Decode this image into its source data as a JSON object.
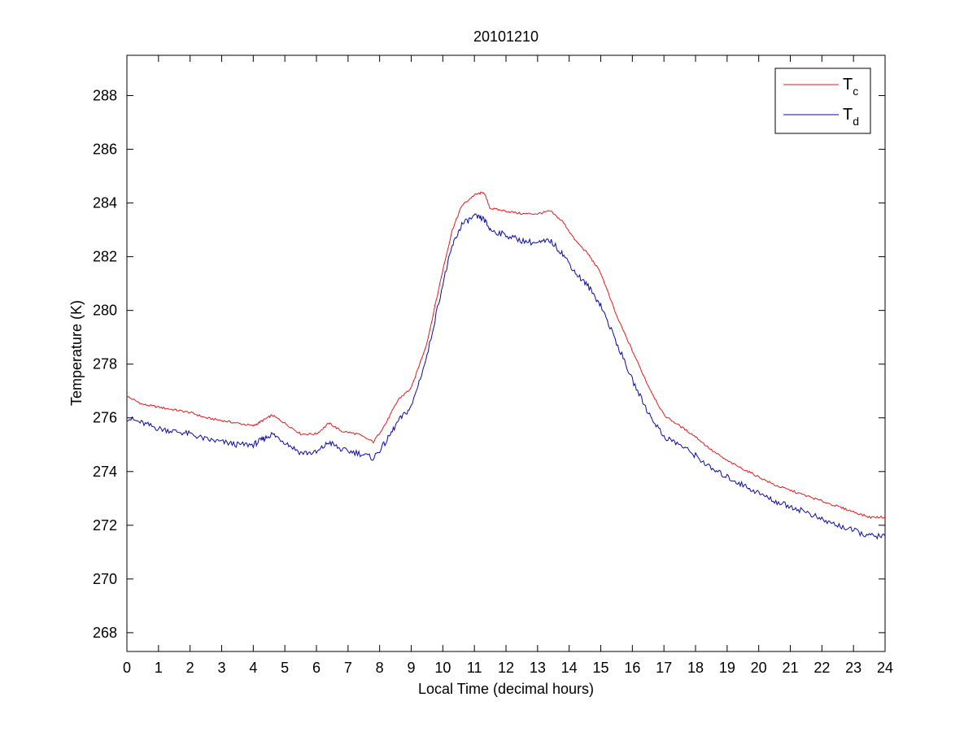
{
  "chart_data": {
    "type": "line",
    "title": "20101210",
    "xlabel": "Local Time (decimal hours)",
    "ylabel": "Temperature (K)",
    "xlim": [
      0,
      24
    ],
    "ylim": [
      267.3,
      289.5
    ],
    "xticks": [
      0,
      1,
      2,
      3,
      4,
      5,
      6,
      7,
      8,
      9,
      10,
      11,
      12,
      13,
      14,
      15,
      16,
      17,
      18,
      19,
      20,
      21,
      22,
      23,
      24
    ],
    "yticks": [
      268,
      270,
      272,
      274,
      276,
      278,
      280,
      282,
      284,
      286,
      288
    ],
    "grid": false,
    "legend_position": "top-right",
    "series": [
      {
        "name": "T",
        "name_subscript": "c",
        "color": "#e31a1c",
        "x": [
          0,
          0.5,
          1,
          1.5,
          2,
          2.5,
          3,
          3.5,
          4,
          4.3,
          4.6,
          5,
          5.5,
          6,
          6.4,
          6.8,
          7.3,
          7.8,
          8.2,
          8.6,
          9,
          9.5,
          10,
          10.3,
          10.6,
          11,
          11.3,
          11.5,
          12,
          12.5,
          13,
          13.4,
          13.8,
          14.2,
          14.6,
          15,
          15.5,
          16,
          16.5,
          17,
          17.5,
          18,
          18.5,
          19,
          19.5,
          20,
          20.5,
          21,
          21.5,
          22,
          22.5,
          23,
          23.5,
          24
        ],
        "values": [
          276.8,
          276.5,
          276.4,
          276.3,
          276.2,
          276.0,
          275.9,
          275.8,
          275.7,
          275.9,
          276.1,
          275.8,
          275.4,
          275.4,
          275.8,
          275.5,
          275.4,
          275.1,
          275.8,
          276.7,
          277.1,
          278.8,
          281.5,
          283.0,
          283.9,
          284.3,
          284.4,
          283.8,
          283.7,
          283.6,
          283.6,
          283.7,
          283.3,
          282.6,
          282.1,
          281.4,
          279.8,
          278.5,
          277.2,
          276.1,
          275.7,
          275.3,
          274.8,
          274.4,
          274.1,
          273.8,
          273.5,
          273.3,
          273.1,
          272.9,
          272.7,
          272.5,
          272.3,
          272.3
        ]
      },
      {
        "name": "T",
        "name_subscript": "d",
        "color": "#0b0b9e",
        "x": [
          0,
          0.5,
          1,
          1.5,
          2,
          2.5,
          3,
          3.5,
          4,
          4.3,
          4.6,
          5,
          5.5,
          6,
          6.4,
          6.8,
          7.3,
          7.8,
          8.2,
          8.6,
          9,
          9.5,
          10,
          10.3,
          10.6,
          11,
          11.3,
          11.5,
          12,
          12.5,
          13,
          13.4,
          13.8,
          14.2,
          14.6,
          15,
          15.5,
          16,
          16.5,
          17,
          17.5,
          18,
          18.5,
          19,
          19.5,
          20,
          20.5,
          21,
          21.5,
          22,
          22.5,
          23,
          23.5,
          24
        ],
        "values": [
          276.0,
          275.8,
          275.6,
          275.5,
          275.4,
          275.2,
          275.1,
          275.0,
          275.0,
          275.2,
          275.4,
          275.1,
          274.7,
          274.7,
          275.1,
          274.8,
          274.7,
          274.5,
          275.1,
          275.9,
          276.4,
          278.3,
          281.0,
          282.4,
          283.2,
          283.5,
          283.4,
          283.0,
          282.8,
          282.6,
          282.5,
          282.6,
          282.1,
          281.4,
          280.9,
          280.2,
          278.8,
          277.4,
          276.2,
          275.3,
          275.0,
          274.6,
          274.1,
          273.8,
          273.5,
          273.2,
          272.9,
          272.7,
          272.5,
          272.2,
          272.0,
          271.8,
          271.6,
          271.6
        ]
      }
    ]
  }
}
